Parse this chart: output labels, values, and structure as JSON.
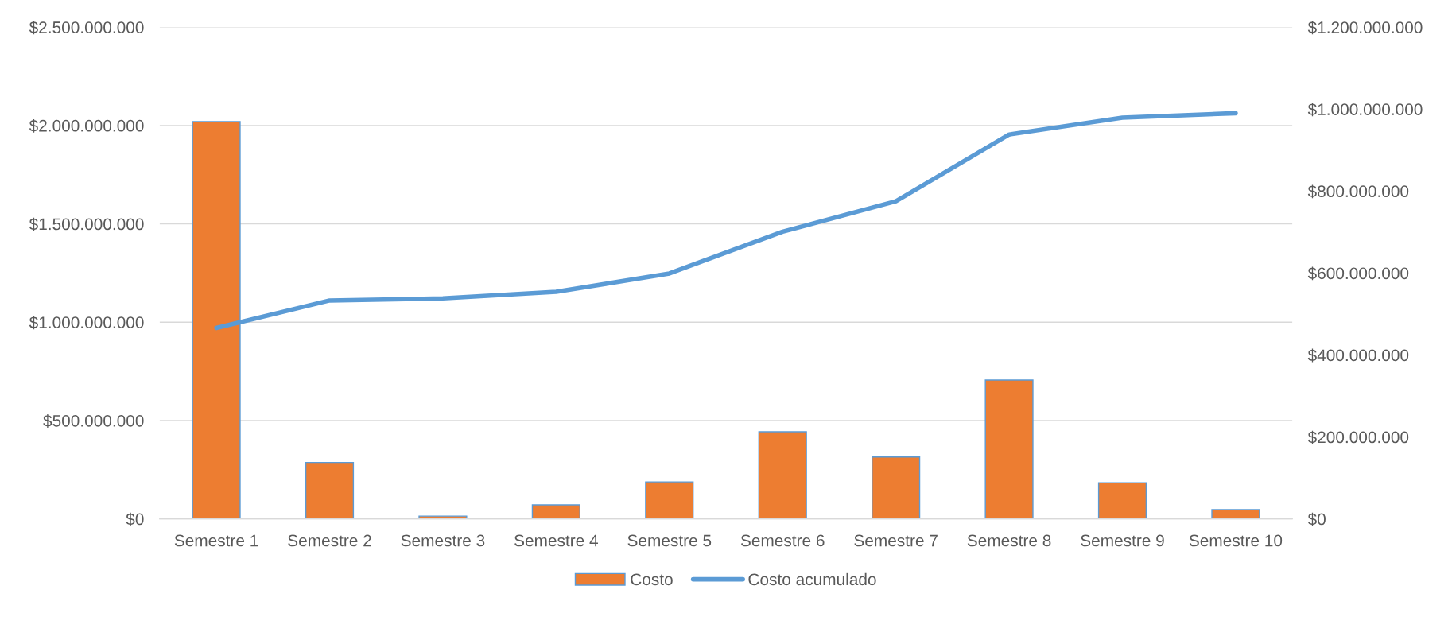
{
  "chart_data": {
    "type": "bar",
    "categories": [
      "Semestre 1",
      "Semestre 2",
      "Semestre 3",
      "Semestre 4",
      "Semestre 5",
      "Semestre 6",
      "Semestre 7",
      "Semestre 8",
      "Semestre 9",
      "Semestre 10"
    ],
    "series": [
      {
        "name": "Costo",
        "color": "#ed7d31",
        "values": [
          2020000000,
          287000000,
          14000000,
          71000000,
          188000000,
          443000000,
          315000000,
          706000000,
          184000000,
          47000000
        ]
      },
      {
        "name": "Costo acumulado",
        "type": "line",
        "axis": "y2",
        "color": "#5b9bd5",
        "values": [
          466000000,
          533000000,
          538000000,
          554000000,
          599000000,
          701000000,
          775000000,
          938000000,
          979000000,
          990000000
        ]
      }
    ],
    "ylim": [
      0,
      2500000000
    ],
    "yticks": [
      {
        "value": 0,
        "label": "$0"
      },
      {
        "value": 500000000,
        "label": "$500.000.000"
      },
      {
        "value": 1000000000,
        "label": "$1.000.000.000"
      },
      {
        "value": 1500000000,
        "label": "$1.500.000.000"
      },
      {
        "value": 2000000000,
        "label": "$2.000.000.000"
      },
      {
        "value": 2500000000,
        "label": "$2.500.000.000"
      }
    ],
    "y2lim": [
      0,
      1200000000
    ],
    "y2ticks": [
      {
        "value": 0,
        "label": "$0"
      },
      {
        "value": 200000000,
        "label": "$200.000.000"
      },
      {
        "value": 400000000,
        "label": "$400.000.000"
      },
      {
        "value": 600000000,
        "label": "$600.000.000"
      },
      {
        "value": 800000000,
        "label": "$800.000.000"
      },
      {
        "value": 1000000000,
        "label": "$1.000.000.000"
      },
      {
        "value": 1200000000,
        "label": "$1.200.000.000"
      }
    ],
    "grid": "y",
    "legend": "bottom"
  }
}
